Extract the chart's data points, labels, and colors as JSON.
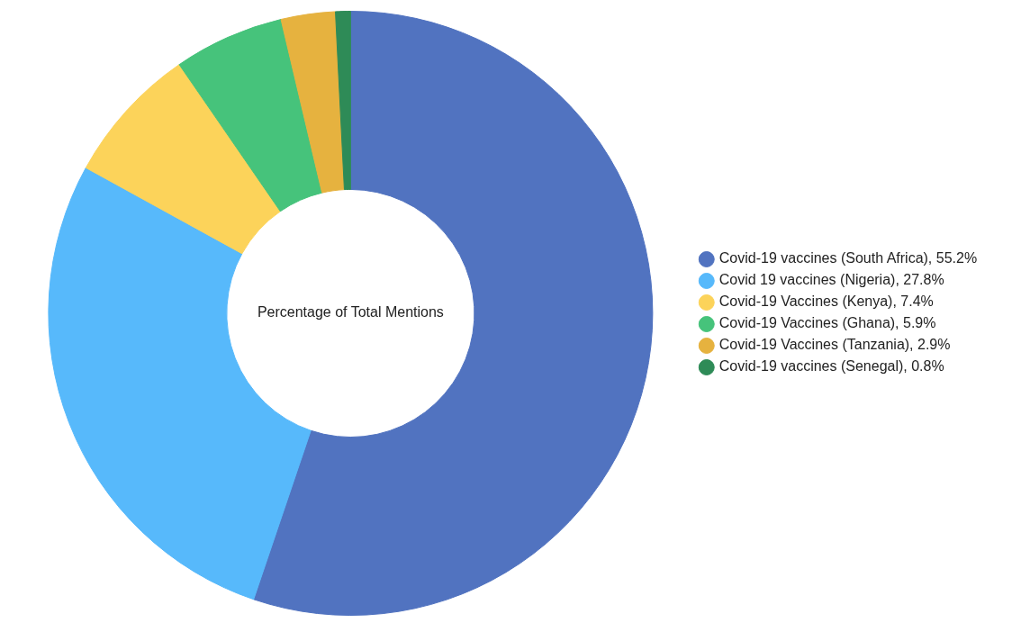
{
  "chart_data": {
    "type": "donut",
    "title": "Percentage of Total Mentions",
    "categories": [
      "Covid-19 vaccines (South Africa)",
      "Covid 19 vaccines (Nigeria)",
      "Covid-19 Vaccines (Kenya)",
      "Covid-19 Vaccines (Ghana)",
      "Covid-19 Vaccines (Tanzania)",
      "Covid-19 vaccines (Senegal)"
    ],
    "values": [
      55.2,
      27.8,
      7.4,
      5.9,
      2.9,
      0.8
    ],
    "value_labels": [
      "55.2%",
      "27.8%",
      "7.4%",
      "5.9%",
      "2.9%",
      "0.8%"
    ],
    "colors": [
      "#5173c0",
      "#57b9fb",
      "#fcd35a",
      "#46c37b",
      "#e6b23f",
      "#2e8b57"
    ],
    "legend": "right"
  }
}
